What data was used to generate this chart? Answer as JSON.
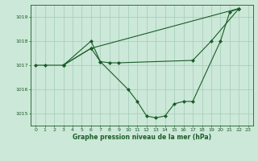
{
  "title": "Graphe pression niveau de la mer (hPa)",
  "background_color": "#cce8d8",
  "grid_color": "#aacfbe",
  "line_color": "#1a5c28",
  "ylim": [
    1014.5,
    1019.5
  ],
  "yticks": [
    1015,
    1016,
    1017,
    1018,
    1019
  ],
  "xlim": [
    -0.5,
    23.5
  ],
  "xticks": [
    0,
    1,
    2,
    3,
    4,
    5,
    6,
    7,
    8,
    9,
    10,
    11,
    12,
    13,
    14,
    15,
    16,
    17,
    18,
    19,
    20,
    21,
    22,
    23
  ],
  "line1_x": [
    0,
    1,
    3,
    6,
    7,
    10,
    11,
    12,
    13,
    14,
    15,
    16,
    17,
    20,
    21,
    22
  ],
  "line1_y": [
    1017.0,
    1017.0,
    1017.0,
    1018.0,
    1017.15,
    1016.0,
    1015.5,
    1014.9,
    1014.82,
    1014.9,
    1015.4,
    1015.5,
    1015.5,
    1018.0,
    1019.2,
    1019.35
  ],
  "line2_x": [
    3,
    6,
    7,
    8,
    9,
    17,
    19,
    22
  ],
  "line2_y": [
    1017.0,
    1017.7,
    1017.15,
    1017.1,
    1017.1,
    1017.2,
    1018.0,
    1019.35
  ],
  "line3_x": [
    3,
    6,
    22
  ],
  "line3_y": [
    1017.0,
    1017.7,
    1019.35
  ],
  "figwidth": 3.2,
  "figheight": 2.0,
  "dpi": 100
}
